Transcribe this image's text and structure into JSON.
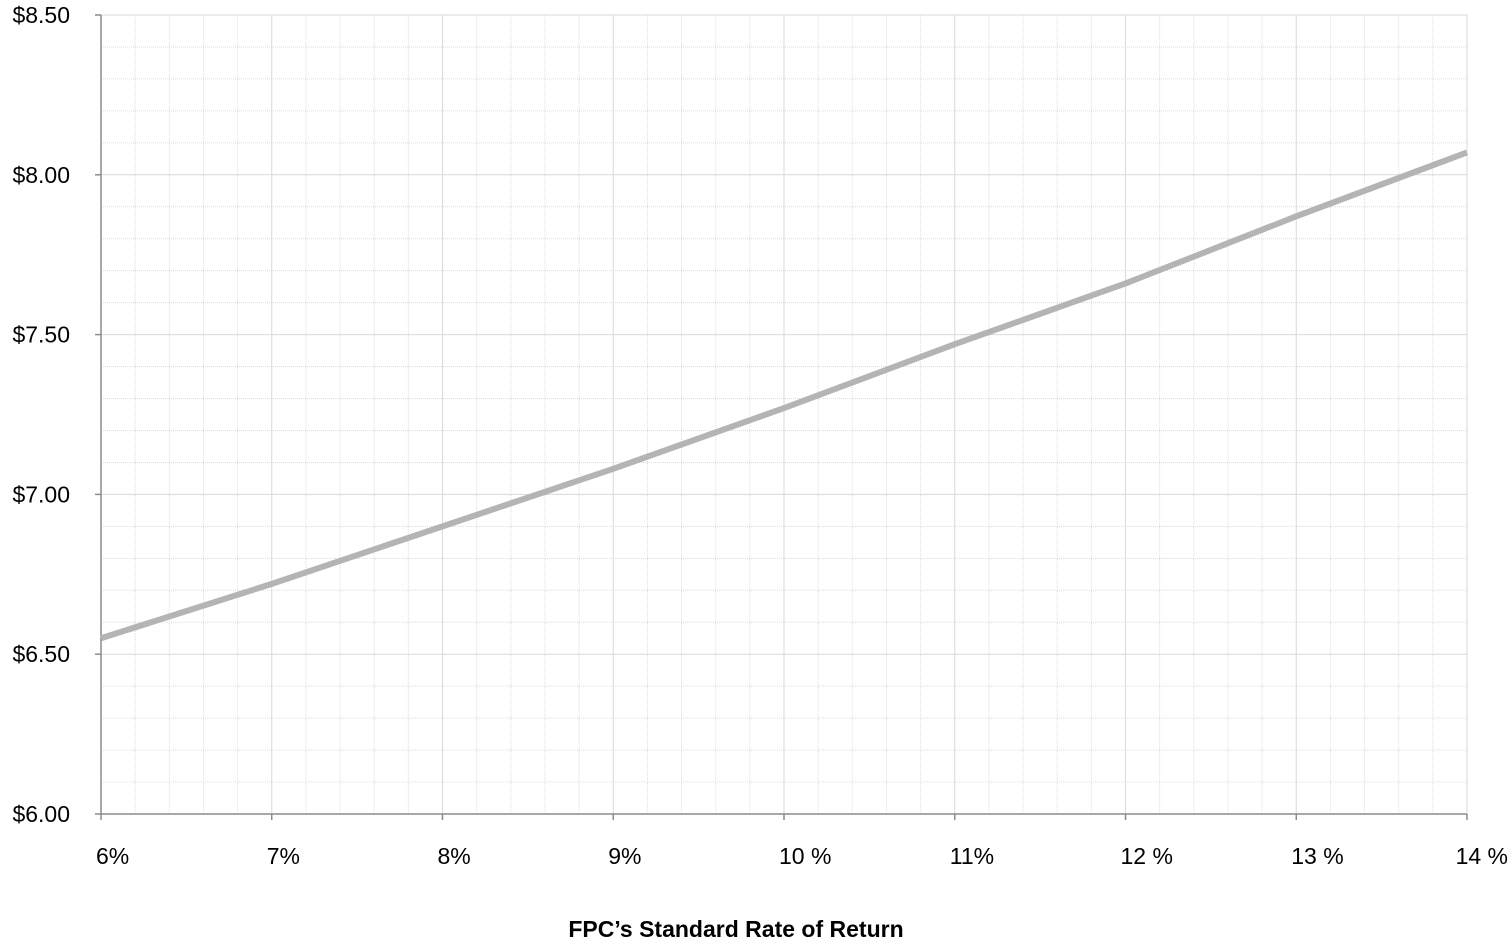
{
  "chart_data": {
    "type": "line",
    "title": "",
    "xlabel": "FPC’s Standard Rate of Return",
    "ylabel": "",
    "xlim": [
      6,
      14
    ],
    "ylim": [
      6.0,
      8.5
    ],
    "x_ticks": [
      6,
      7,
      8,
      9,
      10,
      11,
      12,
      13,
      14
    ],
    "x_tick_labels": [
      "6%",
      "7%",
      "8%",
      "9%",
      "10 %",
      "11%",
      "12 %",
      "13 %",
      "14 %"
    ],
    "y_ticks": [
      6.0,
      6.5,
      7.0,
      7.5,
      8.0,
      8.5
    ],
    "y_tick_labels": [
      "$6.00",
      "$6.50",
      "$7.00",
      "$7.50",
      "$8.00",
      "$8.50"
    ],
    "grid": true,
    "legend": "none",
    "series": [
      {
        "color": "#b4b4b4",
        "x": [
          6,
          7,
          8,
          9,
          10,
          11,
          12,
          13,
          14
        ],
        "values": [
          6.55,
          6.72,
          6.9,
          7.08,
          7.27,
          7.47,
          7.66,
          7.87,
          8.07
        ]
      }
    ]
  }
}
